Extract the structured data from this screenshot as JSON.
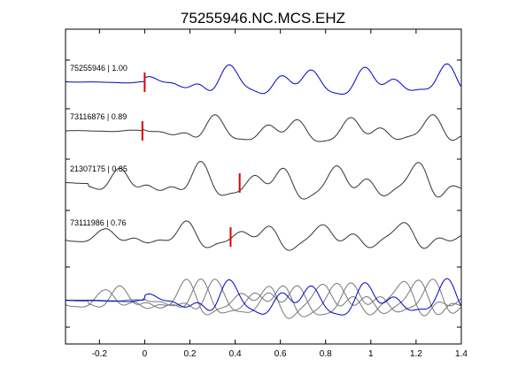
{
  "chart_data": {
    "type": "line",
    "title": "75255946.NC.MCS.EHZ",
    "xlabel": "",
    "ylabel": "",
    "xlim": [
      -0.35,
      1.4
    ],
    "xticks": [
      -0.2,
      0,
      0.2,
      0.4,
      0.6,
      0.8,
      1,
      1.2,
      1.4
    ],
    "xtick_labels": [
      "-0.2",
      "0",
      "0.2",
      "0.4",
      "0.6",
      "0.8",
      "1",
      "1.2",
      "1.4"
    ],
    "grid": false,
    "legend": "none",
    "stack_colors": {
      "master": "#0000cc",
      "other": "#333333",
      "pick": "#dd0000",
      "overlay_other": "#777777"
    },
    "traces": [
      {
        "id": "75255946",
        "cc": "1.00",
        "label": "75255946 | 1.00",
        "pick": 0.0,
        "color": "#0000cc",
        "kind": "master"
      },
      {
        "id": "73116876",
        "cc": "0.89",
        "label": "73116876 | 0.89",
        "pick": -0.01,
        "color": "#333333",
        "kind": "other"
      },
      {
        "id": "21307175",
        "cc": "0.85",
        "label": "21307175 | 0.85",
        "pick": 0.42,
        "color": "#333333",
        "kind": "other"
      },
      {
        "id": "73111986",
        "cc": "0.76",
        "label": "73111986 | 0.76",
        "pick": 0.38,
        "color": "#333333",
        "kind": "other"
      }
    ],
    "overlay": {
      "kind": "stack",
      "members": [
        "75255946",
        "73116876",
        "21307175",
        "73111986"
      ]
    }
  }
}
